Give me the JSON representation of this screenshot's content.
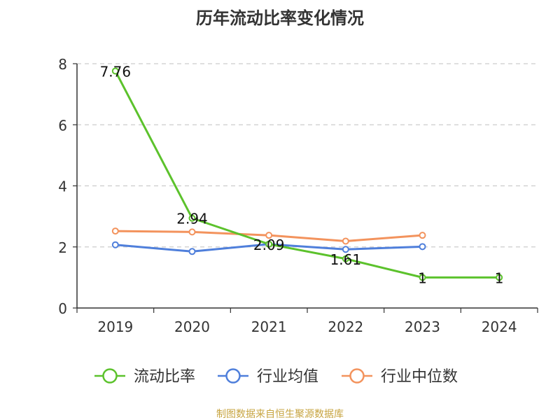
{
  "chart_data": {
    "type": "line",
    "title": "历年流动比率变化情况",
    "categories": [
      "2019",
      "2020",
      "2021",
      "2022",
      "2023",
      "2024"
    ],
    "ylim": [
      0,
      8
    ],
    "yticks": [
      "0",
      "2",
      "4",
      "6",
      "8"
    ],
    "grid": true,
    "legend_position": "bottom",
    "source": "制图数据来自恒生聚源数据库",
    "series": [
      {
        "name": "流动比率",
        "color": "#5cc22c",
        "values": [
          7.76,
          2.94,
          2.09,
          1.61,
          1,
          1
        ],
        "labels": [
          "7.76",
          "2.94",
          "2.09",
          "1.61",
          "1",
          "1"
        ]
      },
      {
        "name": "行业均值",
        "color": "#4f7fdb",
        "values": [
          2.07,
          1.85,
          2.09,
          1.92,
          2.01,
          null
        ],
        "labels": []
      },
      {
        "name": "行业中位数",
        "color": "#f3935d",
        "values": [
          2.52,
          2.49,
          2.38,
          2.19,
          2.38,
          null
        ],
        "labels": []
      }
    ]
  }
}
